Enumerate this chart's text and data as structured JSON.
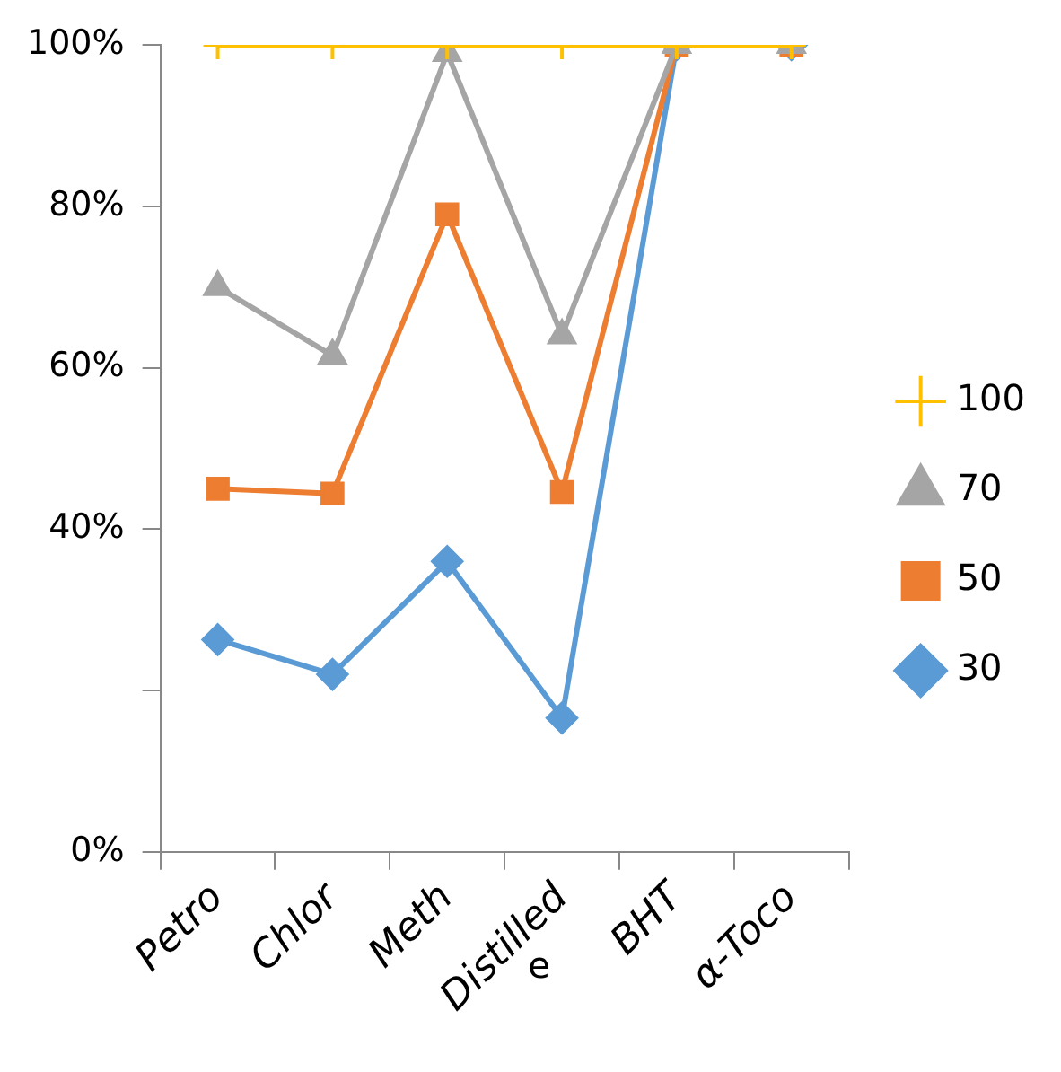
{
  "chart_data": {
    "type": "line",
    "categories": [
      "Petro",
      "Chlor",
      "Meth",
      "Distilled",
      "BHT",
      "α-Toco"
    ],
    "series": [
      {
        "name": "100",
        "color": "#ffc000",
        "marker": "cross",
        "values": [
          100,
          100,
          100,
          100,
          100,
          100
        ]
      },
      {
        "name": "70",
        "color": "#a5a5a5",
        "marker": "triangle",
        "values": [
          70,
          61.5,
          99,
          64,
          100,
          100
        ]
      },
      {
        "name": "50",
        "color": "#ed7d31",
        "marker": "square",
        "values": [
          45,
          44.4,
          79,
          44.6,
          100,
          100
        ]
      },
      {
        "name": "30",
        "color": "#5b9bd5",
        "marker": "diamond",
        "values": [
          26.3,
          22,
          36,
          16.6,
          100,
          100
        ]
      }
    ],
    "ylim": [
      0,
      100
    ],
    "yticks": [
      {
        "value": 0,
        "label": "0%"
      },
      {
        "value": 20,
        "label": null
      },
      {
        "value": 40,
        "label": "40%"
      },
      {
        "value": 60,
        "label": "60%"
      },
      {
        "value": 80,
        "label": "80%"
      },
      {
        "value": 100,
        "label": "100%"
      }
    ],
    "annotations": [
      "e"
    ],
    "grid": false,
    "legend": "right",
    "line_style": "solid"
  }
}
